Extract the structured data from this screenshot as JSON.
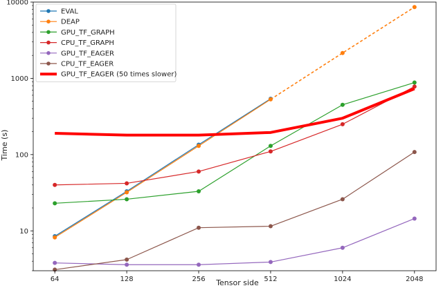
{
  "chart_data": {
    "type": "line",
    "xlabel": "Tensor side",
    "ylabel": "Time (s)",
    "yscale": "log",
    "xscale": "log2",
    "ylim": [
      3,
      10000
    ],
    "x_ticks": [
      64,
      128,
      256,
      512,
      1024,
      2048
    ],
    "x_tick_labels": [
      "64",
      "128",
      "256",
      "512",
      "1024",
      "2048"
    ],
    "y_ticks": [
      10,
      100,
      1000,
      10000
    ],
    "y_tick_labels": [
      "10",
      "100",
      "1000",
      "10000"
    ],
    "legend_position": "top-left",
    "grid": false,
    "series": [
      {
        "name": "EVAL",
        "color": "#1f77b4",
        "width": 1.2,
        "marker": true,
        "x": [
          64,
          128,
          256,
          512
        ],
        "values": [
          8.5,
          33,
          135,
          540
        ]
      },
      {
        "name": "DEAP",
        "color": "#ff7f0e",
        "width": 1.2,
        "marker": true,
        "x": [
          64,
          128,
          256,
          512,
          1024,
          2048
        ],
        "values": [
          8.2,
          32,
          130,
          530,
          2150,
          8600
        ],
        "dashed_from_index": 3
      },
      {
        "name": "GPU_TF_GRAPH",
        "color": "#2ca02c",
        "width": 1.2,
        "marker": true,
        "x": [
          64,
          128,
          256,
          512,
          1024,
          2048
        ],
        "values": [
          23,
          26,
          33,
          130,
          450,
          880
        ]
      },
      {
        "name": "CPU_TF_GRAPH",
        "color": "#d62728",
        "width": 1.2,
        "marker": true,
        "x": [
          64,
          128,
          256,
          512,
          1024,
          2048
        ],
        "values": [
          40,
          42,
          60,
          110,
          250,
          780
        ]
      },
      {
        "name": "GPU_TF_EAGER",
        "color": "#9467bd",
        "width": 1.2,
        "marker": true,
        "x": [
          64,
          128,
          256,
          512,
          1024,
          2048
        ],
        "values": [
          3.8,
          3.6,
          3.6,
          3.9,
          6,
          14.5
        ]
      },
      {
        "name": "CPU_TF_EAGER",
        "color": "#8c564b",
        "width": 1.2,
        "marker": true,
        "x": [
          64,
          128,
          256,
          512,
          1024,
          2048
        ],
        "values": [
          3.1,
          4.2,
          11,
          11.5,
          26,
          108
        ]
      },
      {
        "name": "GPU_TF_EAGER (50 times slower)",
        "color": "#ff0000",
        "width": 4,
        "marker": false,
        "x": [
          64,
          128,
          256,
          512,
          1024,
          2048
        ],
        "values": [
          190,
          180,
          180,
          195,
          300,
          730
        ]
      }
    ]
  }
}
